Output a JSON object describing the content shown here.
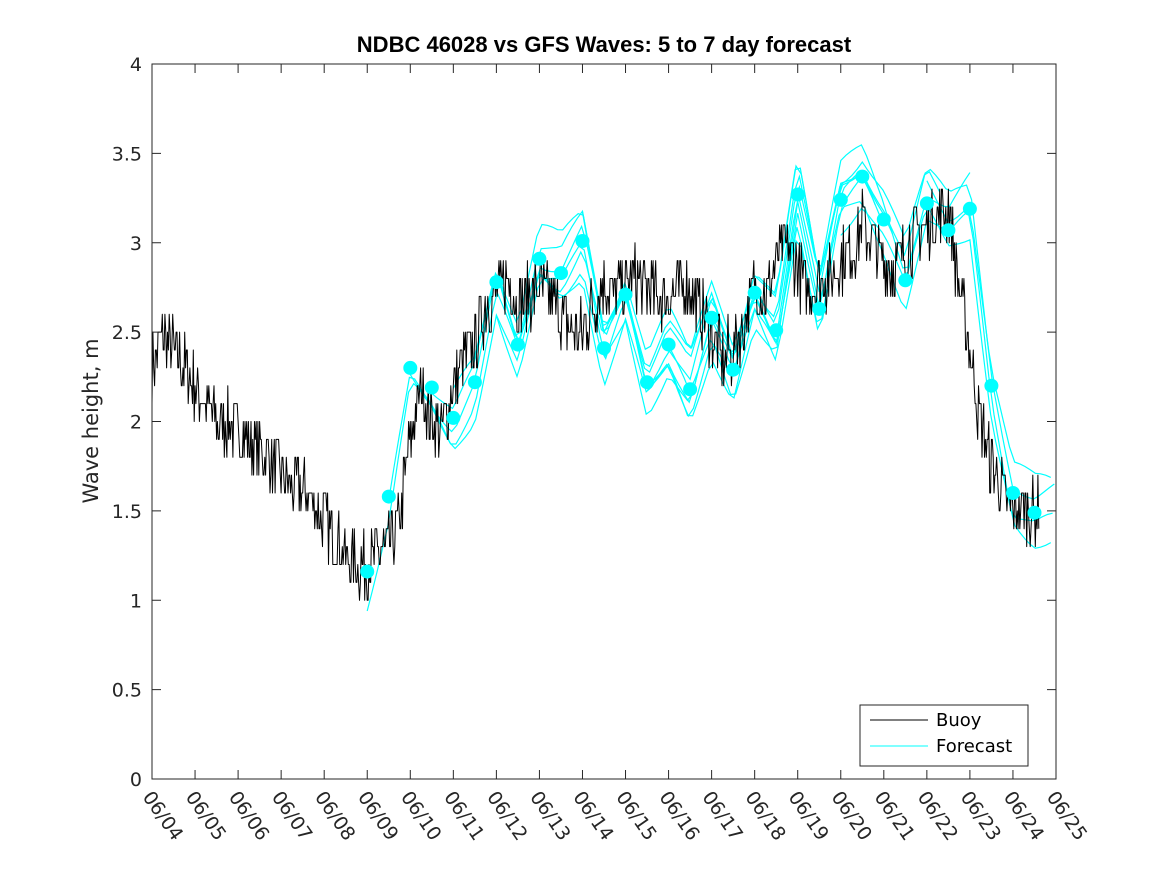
{
  "chart_data": {
    "type": "line",
    "title": "NDBC 46028 vs GFS Waves: 5 to 7 day forecast",
    "xlabel": "",
    "ylabel": "Wave height, m",
    "x_tick_labels": [
      "06/04",
      "06/05",
      "06/06",
      "06/07",
      "06/08",
      "06/09",
      "06/10",
      "06/11",
      "06/12",
      "06/13",
      "06/14",
      "06/15",
      "06/16",
      "06/17",
      "06/18",
      "06/19",
      "06/20",
      "06/21",
      "06/22",
      "06/23",
      "06/24",
      "06/25"
    ],
    "xlim": [
      0,
      21
    ],
    "ylim": [
      0,
      4
    ],
    "y_ticks": [
      "0",
      "0.5",
      "1",
      "1.5",
      "2",
      "2.5",
      "3",
      "3.5",
      "4"
    ],
    "grid": false,
    "legend_position": "bottom-right",
    "colors": {
      "buoy": "#000000",
      "forecast": "#00ffff"
    },
    "series": [
      {
        "name": "Buoy",
        "x": [
          0,
          0.25,
          0.5,
          0.75,
          1,
          1.25,
          1.5,
          1.75,
          2,
          2.25,
          2.5,
          2.75,
          3,
          3.25,
          3.5,
          3.75,
          4,
          4.25,
          4.5,
          4.75,
          5,
          5.25,
          5.5,
          5.75,
          6,
          6.25,
          6.5,
          6.75,
          7,
          7.25,
          7.5,
          7.75,
          8,
          8.25,
          8.5,
          8.75,
          9,
          9.25,
          9.5,
          9.75,
          10,
          10.25,
          10.5,
          10.75,
          11,
          11.25,
          11.5,
          11.75,
          12,
          12.25,
          12.5,
          12.75,
          13,
          13.25,
          13.5,
          13.75,
          14,
          14.25,
          14.5,
          14.75,
          15,
          15.25,
          15.5,
          15.75,
          16,
          16.25,
          16.5,
          16.75,
          17,
          17.25,
          17.5,
          17.75,
          18,
          18.25,
          18.5,
          18.75,
          19,
          19.25,
          19.5,
          19.75,
          20,
          20.25,
          20.5
        ],
        "y": [
          2.3,
          2.5,
          2.4,
          2.3,
          2.2,
          2.1,
          2.0,
          2.0,
          1.95,
          1.9,
          1.85,
          1.8,
          1.7,
          1.65,
          1.6,
          1.55,
          1.45,
          1.35,
          1.25,
          1.2,
          1.2,
          1.25,
          1.3,
          1.45,
          1.9,
          2.2,
          2.0,
          1.95,
          2.2,
          2.35,
          2.45,
          2.65,
          2.7,
          2.8,
          2.65,
          2.7,
          2.75,
          2.7,
          2.6,
          2.5,
          2.5,
          2.65,
          2.8,
          2.7,
          2.75,
          2.8,
          2.75,
          2.7,
          2.7,
          2.75,
          2.75,
          2.6,
          2.5,
          2.35,
          2.4,
          2.55,
          2.75,
          2.7,
          2.9,
          3.0,
          2.85,
          2.7,
          2.8,
          2.8,
          2.9,
          2.95,
          3.1,
          3.0,
          2.9,
          2.85,
          2.95,
          3.05,
          3.1,
          3.15,
          3.2,
          2.75,
          2.4,
          2.0,
          1.75,
          1.6,
          1.5,
          1.5,
          1.5
        ]
      },
      {
        "name": "Forecast",
        "x": [
          5.0,
          5.5,
          6.0,
          6.5,
          7.0,
          7.5,
          8.0,
          8.5,
          9.0,
          9.5,
          10.0,
          10.5,
          11.0,
          11.5,
          12.0,
          12.5,
          13.0,
          13.5,
          14.0,
          14.5,
          15.0,
          15.5,
          16.0,
          16.5,
          17.0,
          17.5,
          18.0,
          18.5,
          19.0,
          19.5,
          20.0,
          20.5
        ],
        "y": [
          1.16,
          1.58,
          2.3,
          2.19,
          2.02,
          2.22,
          2.78,
          2.43,
          2.91,
          2.83,
          3.01,
          2.41,
          2.71,
          2.22,
          2.43,
          2.18,
          2.58,
          2.29,
          2.72,
          2.51,
          3.27,
          2.63,
          3.24,
          3.37,
          3.13,
          2.79,
          3.22,
          3.07,
          3.19,
          2.2,
          1.6,
          1.49
        ]
      }
    ]
  },
  "legend": {
    "buoy_label": "Buoy",
    "forecast_label": "Forecast"
  }
}
